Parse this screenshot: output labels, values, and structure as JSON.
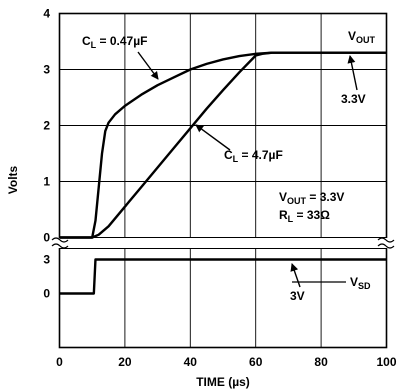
{
  "chart_data": {
    "type": "line",
    "xlabel": "TIME (µs)",
    "ylabel": "Volts",
    "xlim": [
      0,
      100
    ],
    "x_ticks": [
      "0",
      "20",
      "40",
      "60",
      "80",
      "100"
    ],
    "upper_panel": {
      "ylim": [
        0,
        4
      ],
      "y_ticks": [
        "0",
        "1",
        "2",
        "3",
        "4"
      ],
      "series": [
        {
          "name": "C_L = 0.47µF",
          "label": {
            "base": "C",
            "sub": "L",
            "rest": " = 0.47µF"
          },
          "x": [
            0,
            10,
            11,
            12,
            13,
            14,
            15,
            17,
            20,
            25,
            30,
            35,
            40,
            45,
            50,
            55,
            60,
            65,
            70,
            80,
            90,
            100
          ],
          "y": [
            0,
            0,
            0.3,
            0.9,
            1.5,
            1.9,
            2.05,
            2.2,
            2.35,
            2.55,
            2.72,
            2.86,
            3.0,
            3.1,
            3.18,
            3.24,
            3.28,
            3.3,
            3.3,
            3.3,
            3.3,
            3.3
          ]
        },
        {
          "name": "C_L = 4.7µF",
          "label": {
            "base": "C",
            "sub": "L",
            "rest": " = 4.7µF"
          },
          "x": [
            0,
            10,
            12,
            15,
            20,
            25,
            30,
            35,
            40,
            45,
            50,
            55,
            60,
            62,
            65,
            70,
            80,
            90,
            100
          ],
          "y": [
            0,
            0,
            0.05,
            0.2,
            0.55,
            0.9,
            1.25,
            1.6,
            1.95,
            2.3,
            2.63,
            2.95,
            3.25,
            3.28,
            3.3,
            3.3,
            3.3,
            3.3,
            3.3
          ]
        }
      ],
      "annotations": {
        "vout_label": {
          "base": "V",
          "sub": "OUT"
        },
        "vout_level": "3.3V",
        "cond_vout": {
          "base": "V",
          "sub": "OUT",
          "rest": " = 3.3V"
        },
        "cond_rl": {
          "base": "R",
          "sub": "L",
          "rest": " = 33Ω"
        }
      }
    },
    "lower_panel": {
      "ylim": [
        0,
        3
      ],
      "y_ticks": [
        "0",
        "3"
      ],
      "series": [
        {
          "name": "V_SD",
          "label": {
            "base": "V",
            "sub": "SD"
          },
          "x": [
            0,
            10.5,
            11,
            100
          ],
          "y": [
            0,
            0,
            3,
            3
          ]
        }
      ],
      "annotations": {
        "vsd_level": "3V"
      }
    },
    "grid": true,
    "legend": "none (inline labels)"
  }
}
